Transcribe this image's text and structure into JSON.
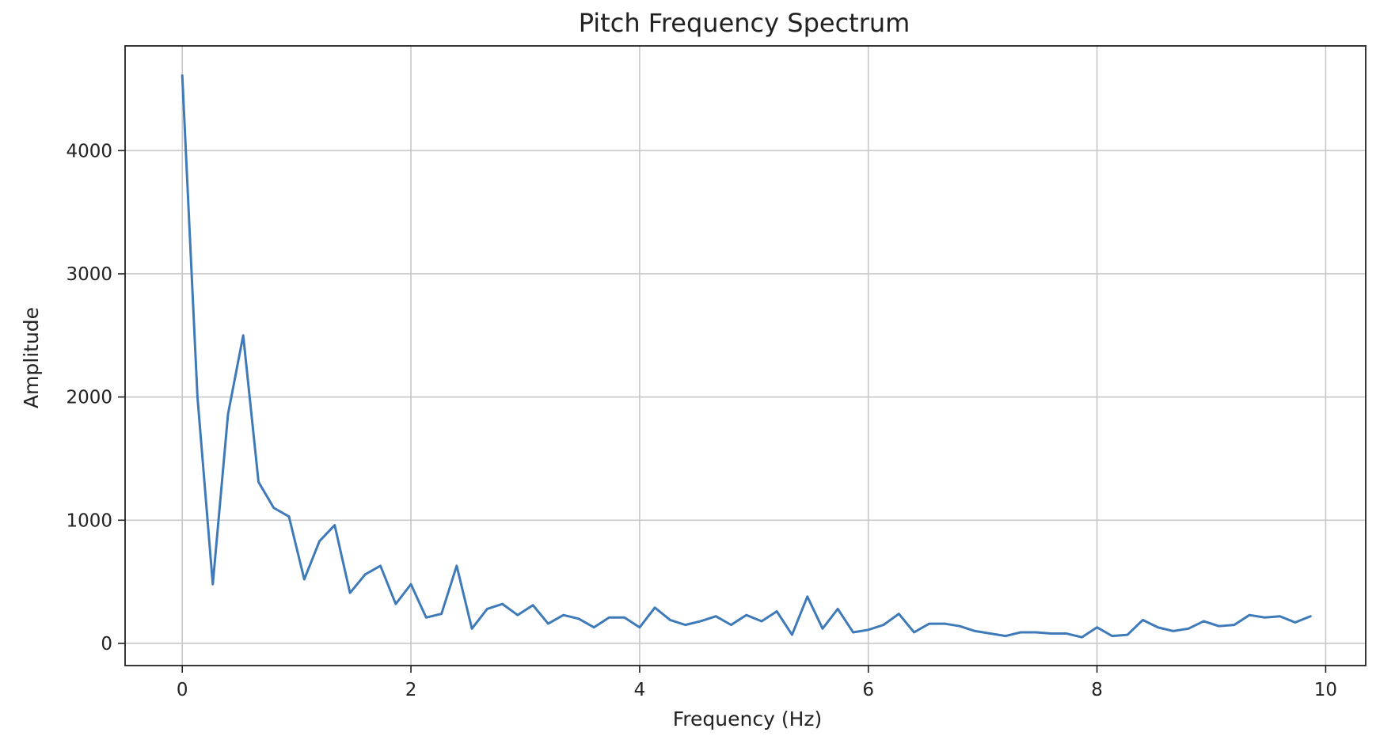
{
  "chart_data": {
    "type": "line",
    "title": "Pitch Frequency Spectrum",
    "xlabel": "Frequency (Hz)",
    "ylabel": "Amplitude",
    "xlim": [
      -0.5,
      10.35
    ],
    "ylim": [
      -180,
      4850
    ],
    "xticks": [
      0,
      2,
      4,
      6,
      8,
      10
    ],
    "yticks": [
      0,
      1000,
      2000,
      3000,
      4000
    ],
    "grid": true,
    "color": "#3f7ab8",
    "series": [
      {
        "x": [
          0,
          0.133,
          0.267,
          0.4,
          0.533,
          0.667,
          0.8,
          0.933,
          1.067,
          1.2,
          1.333,
          1.467,
          1.6,
          1.733,
          1.867,
          2.0,
          2.133,
          2.267,
          2.4,
          2.533,
          2.667,
          2.8,
          2.933,
          3.067,
          3.2,
          3.333,
          3.467,
          3.6,
          3.733,
          3.867,
          4.0,
          4.133,
          4.267,
          4.4,
          4.533,
          4.667,
          4.8,
          4.933,
          5.067,
          5.2,
          5.333,
          5.467,
          5.6,
          5.733,
          5.867,
          6.0,
          6.133,
          6.267,
          6.4,
          6.533,
          6.667,
          6.8,
          6.933,
          7.067,
          7.2,
          7.333,
          7.467,
          7.6,
          7.733,
          7.867,
          8.0,
          8.133,
          8.267,
          8.4,
          8.533,
          8.667,
          8.8,
          8.933,
          9.067,
          9.2,
          9.333,
          9.467,
          9.6,
          9.733,
          9.867
        ],
        "values": [
          4610,
          2000,
          480,
          1860,
          2500,
          1310,
          1100,
          1030,
          520,
          830,
          960,
          410,
          560,
          630,
          320,
          480,
          210,
          240,
          630,
          120,
          280,
          320,
          230,
          310,
          160,
          230,
          200,
          130,
          210,
          210,
          130,
          290,
          190,
          150,
          180,
          220,
          150,
          230,
          180,
          260,
          70,
          380,
          120,
          280,
          90,
          110,
          150,
          240,
          90,
          160,
          160,
          140,
          100,
          80,
          60,
          90,
          90,
          80,
          80,
          50,
          130,
          60,
          70,
          190,
          130,
          100,
          120,
          180,
          140,
          150,
          230,
          210,
          220,
          170,
          220
        ]
      }
    ]
  }
}
